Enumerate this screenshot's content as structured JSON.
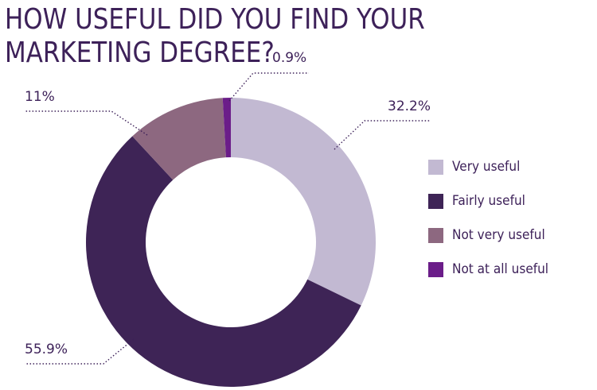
{
  "chart_data": {
    "type": "pie",
    "title": "HOW USEFUL DID YOU FIND YOUR MARKETING DEGREE?",
    "donut": true,
    "categories": [
      "Very useful",
      "Fairly useful",
      "Not very useful",
      "Not at all useful"
    ],
    "values": [
      32.2,
      55.9,
      11,
      0.9
    ],
    "data_labels": [
      "32.2%",
      "55.9%",
      "11%",
      "0.9%"
    ],
    "colors": [
      "#c2b9d2",
      "#3e2456",
      "#8d6880",
      "#6b1d89"
    ],
    "legend_position": "right"
  }
}
